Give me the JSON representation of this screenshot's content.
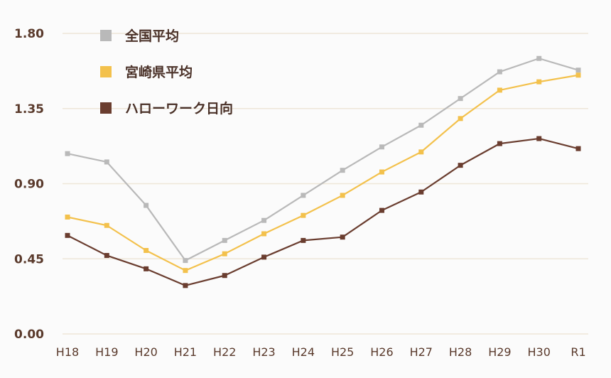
{
  "chart_data": {
    "type": "line",
    "categories": [
      "H18",
      "H19",
      "H20",
      "H21",
      "H22",
      "H23",
      "H24",
      "H25",
      "H26",
      "H27",
      "H28",
      "H29",
      "H30",
      "R1"
    ],
    "ylim": [
      0,
      1.8
    ],
    "yticks": [
      "0.00",
      "0.45",
      "0.90",
      "1.35",
      "1.80"
    ],
    "grid": true,
    "legend_position": "top-left",
    "series": [
      {
        "name": "全国平均",
        "color": "#b9b9b9",
        "values": [
          1.08,
          1.03,
          0.77,
          0.44,
          0.56,
          0.68,
          0.83,
          0.98,
          1.12,
          1.25,
          1.41,
          1.57,
          1.65,
          1.58
        ]
      },
      {
        "name": "宮崎県平均",
        "color": "#f3c14c",
        "values": [
          0.7,
          0.65,
          0.5,
          0.38,
          0.48,
          0.6,
          0.71,
          0.83,
          0.97,
          1.09,
          1.29,
          1.46,
          1.51,
          1.55
        ]
      },
      {
        "name": "ハローワーク日向",
        "color": "#6a3d2f",
        "values": [
          0.59,
          0.47,
          0.39,
          0.29,
          0.35,
          0.46,
          0.56,
          0.58,
          0.74,
          0.85,
          1.01,
          1.14,
          1.17,
          1.11
        ]
      }
    ]
  }
}
